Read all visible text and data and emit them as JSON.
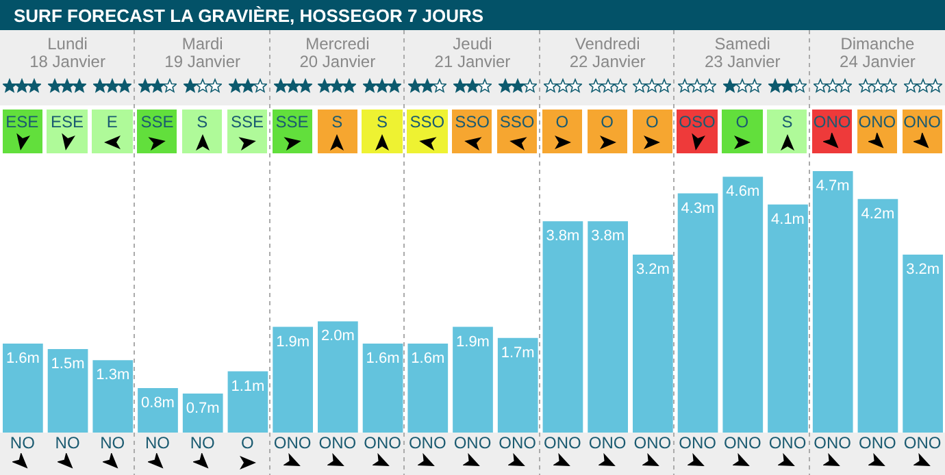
{
  "chart_data": {
    "type": "bar",
    "title": "SURF FORECAST LA GRAVIÈRE, HOSSEGOR 7 JOURS",
    "categories": [
      "NO",
      "NO",
      "NO",
      "NO",
      "NO",
      "O",
      "ONO",
      "ONO",
      "ONO",
      "ONO",
      "ONO",
      "ONO",
      "ONO",
      "ONO",
      "ONO",
      "ONO",
      "ONO",
      "ONO",
      "ONO",
      "ONO",
      "ONO"
    ],
    "values": [
      1.6,
      1.5,
      1.3,
      0.8,
      0.7,
      1.1,
      1.9,
      2.0,
      1.6,
      1.6,
      1.9,
      1.7,
      3.8,
      3.8,
      3.2,
      4.3,
      4.6,
      4.1,
      4.7,
      4.2,
      3.2
    ],
    "value_labels": [
      "1.6m",
      "1.5m",
      "1.3m",
      "0.8m",
      "0.7m",
      "1.1m",
      "1.9m",
      "2.0m",
      "1.6m",
      "1.6m",
      "1.9m",
      "1.7m",
      "3.8m",
      "3.8m",
      "3.2m",
      "4.3m",
      "4.6m",
      "4.1m",
      "4.7m",
      "4.2m",
      "3.2m"
    ],
    "color": "#63c3dd",
    "tick_labels": "x",
    "annotations": [
      "Lundi",
      "18 Janvier",
      "Mardi",
      "19 Janvier",
      "Mercredi",
      "20 Janvier",
      "Jeudi",
      "21 Janvier",
      "Vendredi",
      "22 Janvier",
      "Samedi",
      "23 Janvier",
      "Dimanche",
      "24 Janvier",
      "ESE",
      "ESE",
      "E",
      "SSE",
      "S",
      "SSE",
      "SSE",
      "S",
      "S",
      "SSO",
      "SSO",
      "SSO",
      "O",
      "O",
      "O",
      "OSO",
      "O",
      "S",
      "ONO",
      "ONO",
      "ONO"
    ]
  }
}
